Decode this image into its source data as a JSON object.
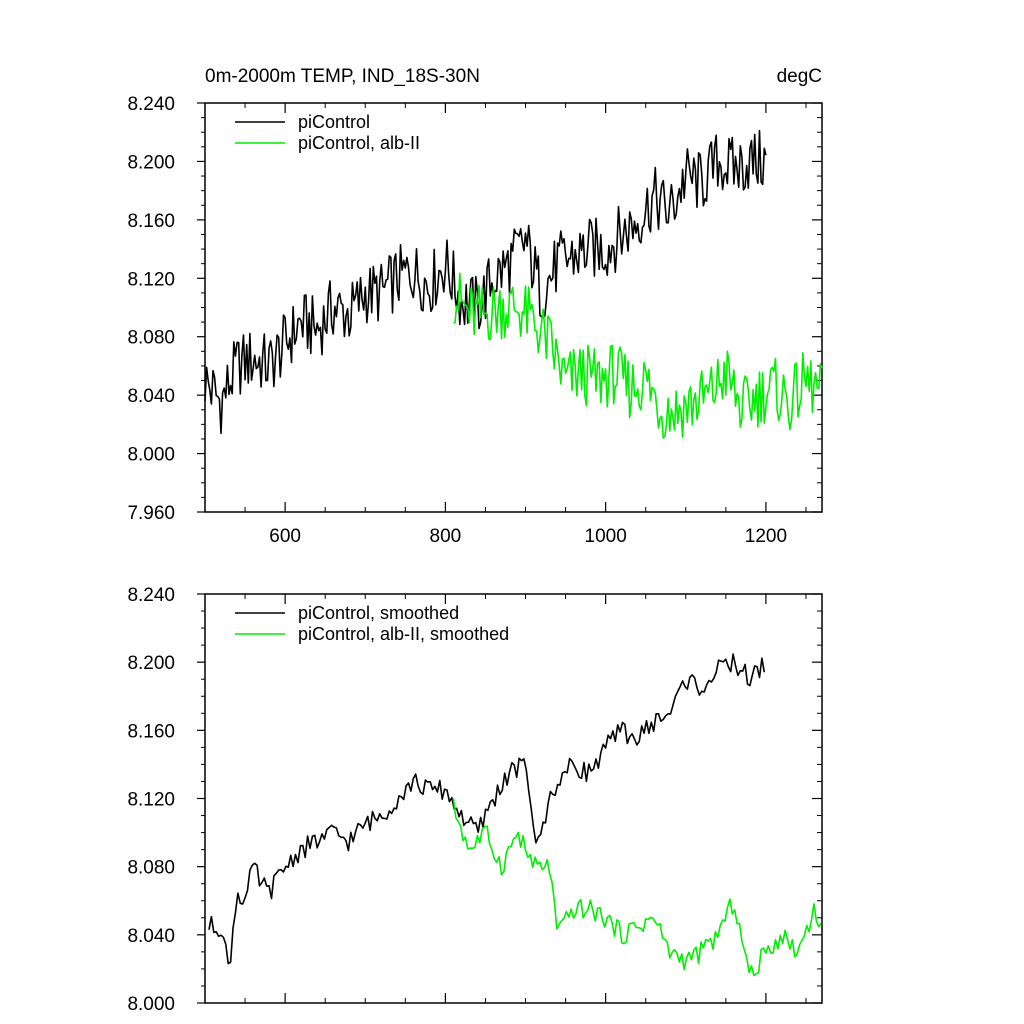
{
  "chart_data": [
    {
      "type": "line",
      "title": "0m-2000m TEMP, IND_18S-30N",
      "units": "degC",
      "xlabel": "",
      "ylabel": "",
      "xlim": [
        500,
        1270
      ],
      "ylim": [
        7.96,
        8.24
      ],
      "x_ticks": [
        600,
        800,
        1000,
        1200
      ],
      "y_ticks": [
        7.96,
        8.0,
        8.04,
        8.08,
        8.12,
        8.16,
        8.2,
        8.24
      ],
      "x_tick_labels": [
        "600",
        "800",
        "1000",
        "1200"
      ],
      "y_tick_labels": [
        "7.960",
        "8.000",
        "8.040",
        "8.080",
        "8.120",
        "8.160",
        "8.200",
        "8.240"
      ],
      "legend_position": "top-left",
      "series": [
        {
          "name": "piControl",
          "color": "#000000",
          "x": [
            500,
            520,
            540,
            560,
            580,
            600,
            620,
            640,
            660,
            680,
            700,
            720,
            740,
            760,
            780,
            800,
            820,
            840,
            860,
            880,
            900,
            920,
            940,
            960,
            980,
            1000,
            1020,
            1040,
            1060,
            1080,
            1100,
            1120,
            1140,
            1160,
            1180,
            1200
          ],
          "values": [
            8.05,
            8.035,
            8.06,
            8.065,
            8.06,
            8.075,
            8.09,
            8.085,
            8.1,
            8.095,
            8.11,
            8.11,
            8.12,
            8.125,
            8.115,
            8.13,
            8.105,
            8.1,
            8.12,
            8.13,
            8.145,
            8.11,
            8.13,
            8.135,
            8.14,
            8.14,
            8.15,
            8.16,
            8.175,
            8.165,
            8.19,
            8.185,
            8.2,
            8.195,
            8.2,
            8.2
          ]
        },
        {
          "name": "piControl, alb-II",
          "color": "#00ee00",
          "x": [
            810,
            830,
            850,
            870,
            890,
            910,
            930,
            950,
            970,
            990,
            1010,
            1030,
            1050,
            1070,
            1090,
            1110,
            1130,
            1150,
            1170,
            1190,
            1210,
            1230,
            1250,
            1270
          ],
          "values": [
            8.11,
            8.095,
            8.095,
            8.1,
            8.1,
            8.09,
            8.075,
            8.05,
            8.055,
            8.05,
            8.055,
            8.045,
            8.05,
            8.03,
            8.03,
            8.035,
            8.04,
            8.055,
            8.03,
            8.04,
            8.045,
            8.035,
            8.05,
            8.04
          ]
        }
      ]
    },
    {
      "type": "line",
      "title": "",
      "xlabel": "",
      "ylabel": "",
      "xlim": [
        500,
        1270
      ],
      "ylim": [
        8.0,
        8.24
      ],
      "x_ticks": [
        600,
        800,
        1000,
        1200
      ],
      "y_ticks": [
        8.0,
        8.04,
        8.08,
        8.12,
        8.16,
        8.2,
        8.24
      ],
      "y_tick_labels": [
        "8.000",
        "8.040",
        "8.080",
        "8.120",
        "8.160",
        "8.200",
        "8.240"
      ],
      "legend_position": "top-left",
      "series": [
        {
          "name": "piControl, smoothed",
          "color": "#000000",
          "x": [
            505,
            520,
            530,
            540,
            550,
            560,
            570,
            580,
            600,
            620,
            640,
            660,
            680,
            700,
            720,
            740,
            760,
            780,
            800,
            820,
            840,
            860,
            880,
            900,
            915,
            930,
            940,
            960,
            980,
            1000,
            1020,
            1040,
            1060,
            1080,
            1100,
            1120,
            1140,
            1160,
            1180,
            1200
          ],
          "values": [
            8.045,
            8.045,
            8.02,
            8.065,
            8.06,
            8.08,
            8.07,
            8.065,
            8.08,
            8.09,
            8.095,
            8.1,
            8.095,
            8.105,
            8.11,
            8.12,
            8.13,
            8.125,
            8.125,
            8.11,
            8.1,
            8.12,
            8.135,
            8.14,
            8.09,
            8.12,
            8.13,
            8.14,
            8.135,
            8.15,
            8.16,
            8.155,
            8.165,
            8.17,
            8.19,
            8.185,
            8.195,
            8.2,
            8.19,
            8.2
          ]
        },
        {
          "name": "piControl, alb-II, smoothed",
          "color": "#00ee00",
          "x": [
            810,
            830,
            850,
            870,
            890,
            910,
            930,
            940,
            960,
            980,
            1000,
            1020,
            1040,
            1060,
            1080,
            1100,
            1120,
            1140,
            1160,
            1180,
            1200,
            1220,
            1240,
            1260,
            1270
          ],
          "values": [
            8.115,
            8.09,
            8.1,
            8.08,
            8.1,
            8.08,
            8.08,
            8.04,
            8.055,
            8.055,
            8.05,
            8.04,
            8.045,
            8.05,
            8.03,
            8.025,
            8.03,
            8.04,
            8.06,
            8.015,
            8.03,
            8.04,
            8.03,
            8.055,
            8.045
          ]
        }
      ]
    }
  ]
}
